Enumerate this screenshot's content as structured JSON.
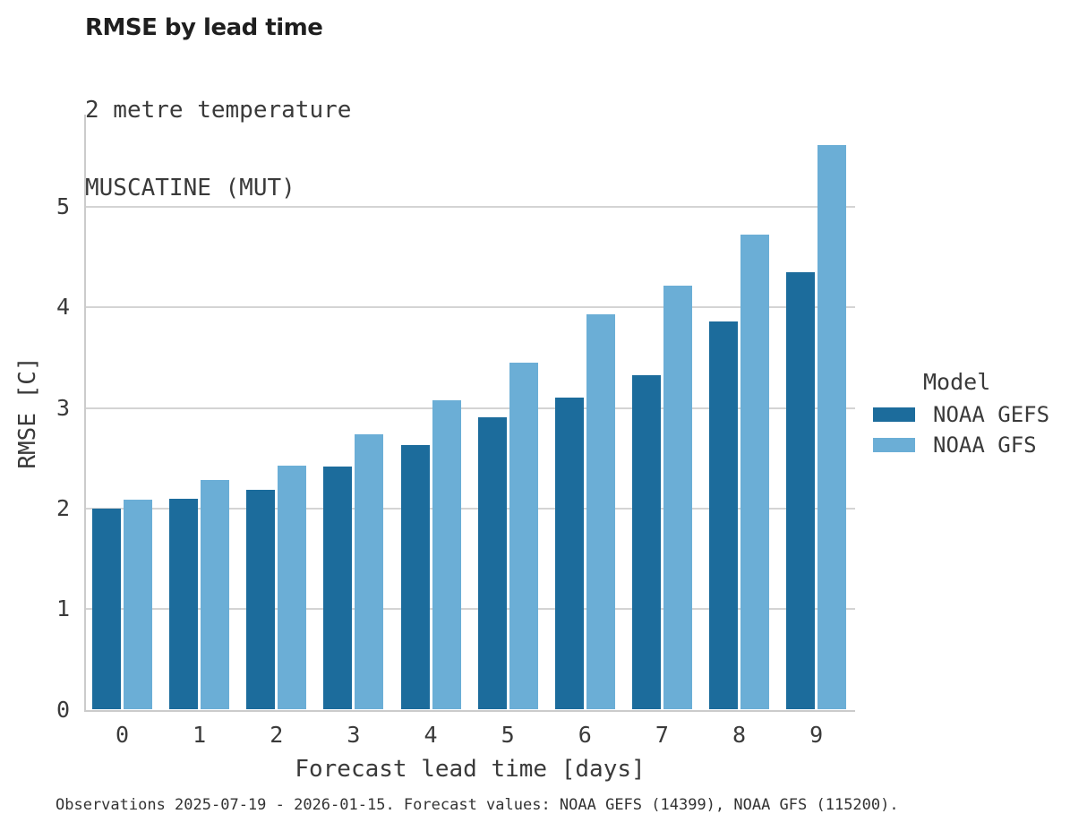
{
  "title": "RMSE by lead time",
  "subtitle_lines": [
    "2 metre temperature",
    "MUSCATINE (MUT)"
  ],
  "footer": "Observations 2025-07-19 - 2026-01-15. Forecast values: NOAA GEFS (14399), NOAA GFS (115200).",
  "legend": {
    "title": "Model",
    "items": [
      {
        "label": "NOAA GEFS",
        "color": "#1C6C9C"
      },
      {
        "label": "NOAA GFS",
        "color": "#6BAED6"
      }
    ]
  },
  "colors": {
    "gefs_dark_blue": "#1C6C9C",
    "gfs_light_blue": "#6BAED6",
    "gridline": "#d4d4d4",
    "axis": "#cbcbcb",
    "text": "#3a3a3a"
  },
  "chart_data": {
    "type": "bar",
    "title": "RMSE by lead time",
    "subtitle": [
      "2 metre temperature",
      "MUSCATINE (MUT)"
    ],
    "xlabel": "Forecast lead time [days]",
    "ylabel": "RMSE [C]",
    "categories": [
      "0",
      "1",
      "2",
      "3",
      "4",
      "5",
      "6",
      "7",
      "8",
      "9"
    ],
    "series": [
      {
        "name": "NOAA GEFS",
        "color": "#1C6C9C",
        "values": [
          2.0,
          2.1,
          2.19,
          2.42,
          2.63,
          2.91,
          3.1,
          3.33,
          3.86,
          4.35
        ]
      },
      {
        "name": "NOAA GFS",
        "color": "#6BAED6",
        "values": [
          2.09,
          2.28,
          2.43,
          2.74,
          3.08,
          3.45,
          3.93,
          4.22,
          4.72,
          5.61
        ]
      }
    ],
    "yticks": [
      0,
      1,
      2,
      3,
      4,
      5
    ],
    "ylim": [
      0,
      5.92
    ],
    "grid": "horizontal-major-only",
    "legend_title": "Model",
    "legend_position": "right-center",
    "caption": "Observations 2025-07-19 - 2026-01-15. Forecast values: NOAA GEFS (14399), NOAA GFS (115200)."
  }
}
